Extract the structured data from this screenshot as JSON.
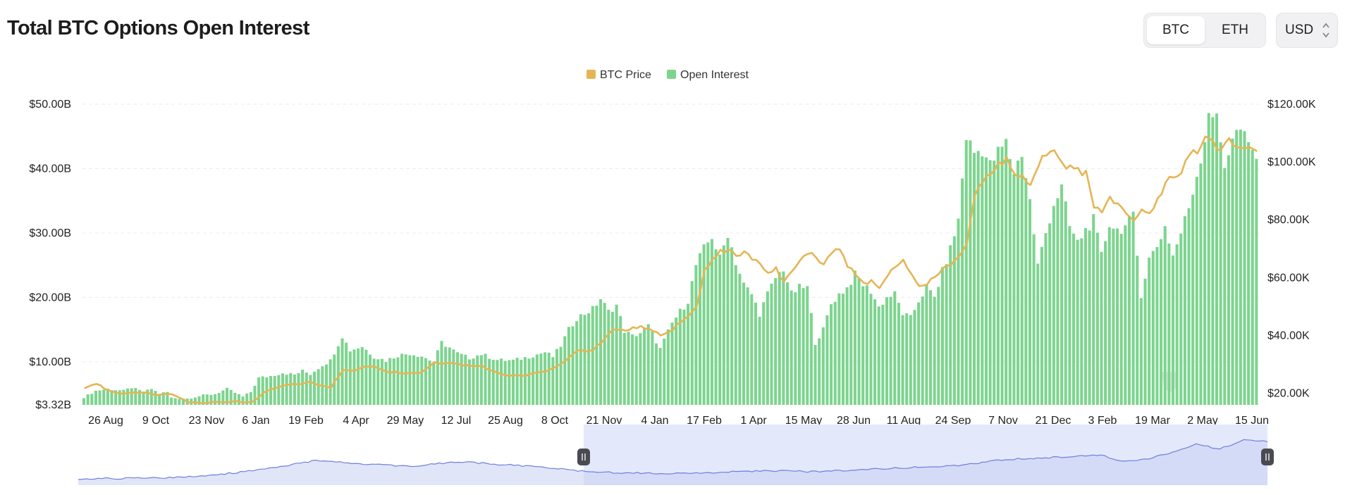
{
  "header": {
    "title": "Total BTC Options Open Interest"
  },
  "asset_toggle": {
    "options": [
      "BTC",
      "ETH"
    ],
    "selected": "BTC"
  },
  "currency_select": {
    "value": "USD"
  },
  "colors": {
    "open_interest": "#7dd48f",
    "btc_price": "#e5b554",
    "brush_fill": "#e3e8fb",
    "brush_line": "#6f7fdc"
  },
  "chart_data": {
    "type": "bar",
    "title": "Total BTC Options Open Interest",
    "legend": {
      "placement": "top-center",
      "entries": [
        "BTC Price",
        "Open Interest"
      ]
    },
    "x_ticks": [
      "26 Aug",
      "9 Oct",
      "23 Nov",
      "6 Jan",
      "19 Feb",
      "4 Apr",
      "29 May",
      "12 Jul",
      "25 Aug",
      "8 Oct",
      "21 Nov",
      "4 Jan",
      "17 Feb",
      "1 Apr",
      "15 May",
      "28 Jun",
      "11 Aug",
      "24 Sep",
      "7 Nov",
      "21 Dec",
      "3 Feb",
      "19 Mar",
      "2 May",
      "15 Jun"
    ],
    "y_left": {
      "ticks": [
        "$3.32B",
        "$10.00B",
        "$20.00B",
        "$30.00B",
        "$40.00B",
        "$50.00B"
      ],
      "min": 3.32,
      "max": 50
    },
    "y_right": {
      "ticks": [
        "$20.00K",
        "$40.00K",
        "$60.00K",
        "$80.00K",
        "$100.00K",
        "$120.00K"
      ],
      "min": 16000,
      "max": 120000
    },
    "grid": true,
    "series": [
      {
        "name": "Open Interest",
        "type": "bar",
        "unit": "B USD",
        "keypoints": [
          [
            0,
            4.5
          ],
          [
            3,
            5.5
          ],
          [
            6,
            5.8
          ],
          [
            10,
            5.5
          ],
          [
            12,
            6.0
          ],
          [
            15,
            5.3
          ],
          [
            17,
            5.8
          ],
          [
            19,
            5.1
          ],
          [
            21,
            5.3
          ],
          [
            22,
            4.4
          ],
          [
            26,
            4.3
          ],
          [
            30,
            4.8
          ],
          [
            33,
            5.0
          ],
          [
            36,
            5.8
          ],
          [
            40,
            4.6
          ],
          [
            42,
            5.3
          ],
          [
            44,
            7.5
          ],
          [
            47,
            7.8
          ],
          [
            50,
            8.3
          ],
          [
            53,
            8.0
          ],
          [
            55,
            8.6
          ],
          [
            57,
            8.1
          ],
          [
            60,
            9.5
          ],
          [
            62,
            10.2
          ],
          [
            65,
            14.0
          ],
          [
            67,
            11.8
          ],
          [
            70,
            12.4
          ],
          [
            73,
            10.8
          ],
          [
            76,
            10.2
          ],
          [
            79,
            11.0
          ],
          [
            82,
            11.3
          ],
          [
            85,
            10.9
          ],
          [
            88,
            10.0
          ],
          [
            90,
            13.0
          ],
          [
            92,
            12.2
          ],
          [
            94,
            11.3
          ],
          [
            97,
            10.6
          ],
          [
            100,
            11.2
          ],
          [
            104,
            10.3
          ],
          [
            108,
            10.2
          ],
          [
            112,
            10.8
          ],
          [
            116,
            11.5
          ],
          [
            118,
            10.8
          ],
          [
            120,
            12.5
          ],
          [
            122,
            15.0
          ],
          [
            124,
            16.8
          ],
          [
            126,
            17.5
          ],
          [
            128,
            18.2
          ],
          [
            130,
            19.8
          ],
          [
            132,
            17.8
          ],
          [
            134,
            18.8
          ],
          [
            136,
            14.8
          ],
          [
            138,
            14.0
          ],
          [
            140,
            14.5
          ],
          [
            142,
            15.6
          ],
          [
            145,
            12.0
          ],
          [
            148,
            16.0
          ],
          [
            150,
            17.8
          ],
          [
            152,
            19.5
          ],
          [
            154,
            25.0
          ],
          [
            156,
            27.5
          ],
          [
            158,
            29.5
          ],
          [
            160,
            26.0
          ],
          [
            162,
            30.0
          ],
          [
            164,
            25.5
          ],
          [
            166,
            22.0
          ],
          [
            168,
            20.5
          ],
          [
            170,
            17.5
          ],
          [
            172,
            20.5
          ],
          [
            174,
            23.0
          ],
          [
            176,
            24.5
          ],
          [
            178,
            20.5
          ],
          [
            180,
            21.5
          ],
          [
            182,
            21.5
          ],
          [
            184,
            13.0
          ],
          [
            186,
            15.0
          ],
          [
            188,
            19.0
          ],
          [
            190,
            20.5
          ],
          [
            192,
            21.5
          ],
          [
            194,
            23.5
          ],
          [
            196,
            22.0
          ],
          [
            198,
            21.0
          ],
          [
            200,
            18.5
          ],
          [
            202,
            20.0
          ],
          [
            204,
            20.5
          ],
          [
            206,
            17.5
          ],
          [
            208,
            16.8
          ],
          [
            210,
            19.5
          ],
          [
            212,
            21.5
          ],
          [
            214,
            20.0
          ],
          [
            216,
            24.0
          ],
          [
            218,
            27.5
          ],
          [
            220,
            32.0
          ],
          [
            222,
            45.0
          ],
          [
            224,
            42.5
          ],
          [
            226,
            43.0
          ],
          [
            228,
            40.5
          ],
          [
            230,
            42.5
          ],
          [
            232,
            44.0
          ],
          [
            234,
            39.5
          ],
          [
            236,
            42.5
          ],
          [
            238,
            35.0
          ],
          [
            240,
            25.0
          ],
          [
            242,
            30.0
          ],
          [
            244,
            34.5
          ],
          [
            246,
            37.0
          ],
          [
            248,
            31.0
          ],
          [
            250,
            28.5
          ],
          [
            252,
            30.5
          ],
          [
            254,
            32.0
          ],
          [
            256,
            26.5
          ],
          [
            258,
            31.5
          ],
          [
            260,
            30.5
          ],
          [
            262,
            31.0
          ],
          [
            264,
            32.5
          ],
          [
            266,
            20.5
          ],
          [
            268,
            26.0
          ],
          [
            270,
            28.0
          ],
          [
            272,
            31.0
          ],
          [
            274,
            26.5
          ],
          [
            276,
            30.0
          ],
          [
            278,
            34.0
          ],
          [
            280,
            39.0
          ],
          [
            282,
            44.5
          ],
          [
            283,
            49.3
          ],
          [
            285,
            47.5
          ],
          [
            287,
            40.5
          ],
          [
            289,
            45.0
          ],
          [
            291,
            46.0
          ],
          [
            293,
            43.5
          ],
          [
            295,
            42.0
          ]
        ]
      },
      {
        "name": "BTC Price",
        "type": "line",
        "unit": "USD",
        "keypoints": [
          [
            0,
            22000
          ],
          [
            3,
            23500
          ],
          [
            6,
            21000
          ],
          [
            10,
            19800
          ],
          [
            14,
            20500
          ],
          [
            18,
            19500
          ],
          [
            22,
            19800
          ],
          [
            26,
            17000
          ],
          [
            30,
            16800
          ],
          [
            34,
            16900
          ],
          [
            38,
            17200
          ],
          [
            42,
            16800
          ],
          [
            46,
            21000
          ],
          [
            50,
            22800
          ],
          [
            54,
            23300
          ],
          [
            57,
            24000
          ],
          [
            60,
            22500
          ],
          [
            62,
            22000
          ],
          [
            65,
            28000
          ],
          [
            68,
            28200
          ],
          [
            72,
            29500
          ],
          [
            76,
            27500
          ],
          [
            80,
            27000
          ],
          [
            84,
            26800
          ],
          [
            88,
            30500
          ],
          [
            92,
            30200
          ],
          [
            96,
            29800
          ],
          [
            100,
            29500
          ],
          [
            104,
            27000
          ],
          [
            108,
            26000
          ],
          [
            112,
            26500
          ],
          [
            116,
            27500
          ],
          [
            120,
            30000
          ],
          [
            124,
            34500
          ],
          [
            128,
            35000
          ],
          [
            130,
            37500
          ],
          [
            133,
            42000
          ],
          [
            136,
            41500
          ],
          [
            139,
            43000
          ],
          [
            142,
            42500
          ],
          [
            145,
            40000
          ],
          [
            148,
            42000
          ],
          [
            151,
            46000
          ],
          [
            154,
            50000
          ],
          [
            156,
            62000
          ],
          [
            158,
            67000
          ],
          [
            160,
            69000
          ],
          [
            162,
            70000
          ],
          [
            164,
            67000
          ],
          [
            166,
            70000
          ],
          [
            168,
            67000
          ],
          [
            170,
            65000
          ],
          [
            172,
            61000
          ],
          [
            174,
            63000
          ],
          [
            176,
            58000
          ],
          [
            178,
            62000
          ],
          [
            180,
            66000
          ],
          [
            182,
            69000
          ],
          [
            184,
            67000
          ],
          [
            186,
            65000
          ],
          [
            188,
            68000
          ],
          [
            190,
            70000
          ],
          [
            192,
            64000
          ],
          [
            194,
            61000
          ],
          [
            196,
            58000
          ],
          [
            198,
            59000
          ],
          [
            200,
            57000
          ],
          [
            202,
            60000
          ],
          [
            204,
            64000
          ],
          [
            206,
            66000
          ],
          [
            208,
            61000
          ],
          [
            210,
            57000
          ],
          [
            212,
            58000
          ],
          [
            214,
            60000
          ],
          [
            216,
            63000
          ],
          [
            218,
            65000
          ],
          [
            220,
            68000
          ],
          [
            222,
            72000
          ],
          [
            224,
            89000
          ],
          [
            226,
            92000
          ],
          [
            228,
            97000
          ],
          [
            230,
            99000
          ],
          [
            232,
            101000
          ],
          [
            234,
            97000
          ],
          [
            236,
            95000
          ],
          [
            238,
            93000
          ],
          [
            240,
            99000
          ],
          [
            242,
            103000
          ],
          [
            244,
            104000
          ],
          [
            246,
            99000
          ],
          [
            248,
            98000
          ],
          [
            250,
            97000
          ],
          [
            252,
            96000
          ],
          [
            254,
            84000
          ],
          [
            256,
            83000
          ],
          [
            258,
            88000
          ],
          [
            260,
            85000
          ],
          [
            262,
            83000
          ],
          [
            264,
            80000
          ],
          [
            266,
            84000
          ],
          [
            268,
            83000
          ],
          [
            270,
            87000
          ],
          [
            272,
            93000
          ],
          [
            274,
            95000
          ],
          [
            276,
            97000
          ],
          [
            278,
            103000
          ],
          [
            280,
            104000
          ],
          [
            282,
            108000
          ],
          [
            284,
            106000
          ],
          [
            286,
            104000
          ],
          [
            288,
            108000
          ],
          [
            290,
            105000
          ],
          [
            292,
            104500
          ],
          [
            295,
            104000
          ]
        ]
      }
    ]
  },
  "navigator": {
    "selection_start": 0.425,
    "selection_end": 1.0,
    "keypoints": [
      [
        0,
        0.12
      ],
      [
        0.06,
        0.13
      ],
      [
        0.1,
        0.16
      ],
      [
        0.14,
        0.25
      ],
      [
        0.17,
        0.35
      ],
      [
        0.2,
        0.46
      ],
      [
        0.24,
        0.4
      ],
      [
        0.28,
        0.35
      ],
      [
        0.32,
        0.44
      ],
      [
        0.36,
        0.38
      ],
      [
        0.4,
        0.32
      ],
      [
        0.43,
        0.25
      ],
      [
        0.46,
        0.23
      ],
      [
        0.5,
        0.22
      ],
      [
        0.54,
        0.24
      ],
      [
        0.58,
        0.27
      ],
      [
        0.62,
        0.25
      ],
      [
        0.66,
        0.29
      ],
      [
        0.7,
        0.33
      ],
      [
        0.74,
        0.37
      ],
      [
        0.78,
        0.48
      ],
      [
        0.82,
        0.52
      ],
      [
        0.86,
        0.56
      ],
      [
        0.88,
        0.44
      ],
      [
        0.9,
        0.5
      ],
      [
        0.92,
        0.61
      ],
      [
        0.94,
        0.76
      ],
      [
        0.96,
        0.68
      ],
      [
        0.98,
        0.84
      ],
      [
        1,
        0.82
      ]
    ]
  }
}
